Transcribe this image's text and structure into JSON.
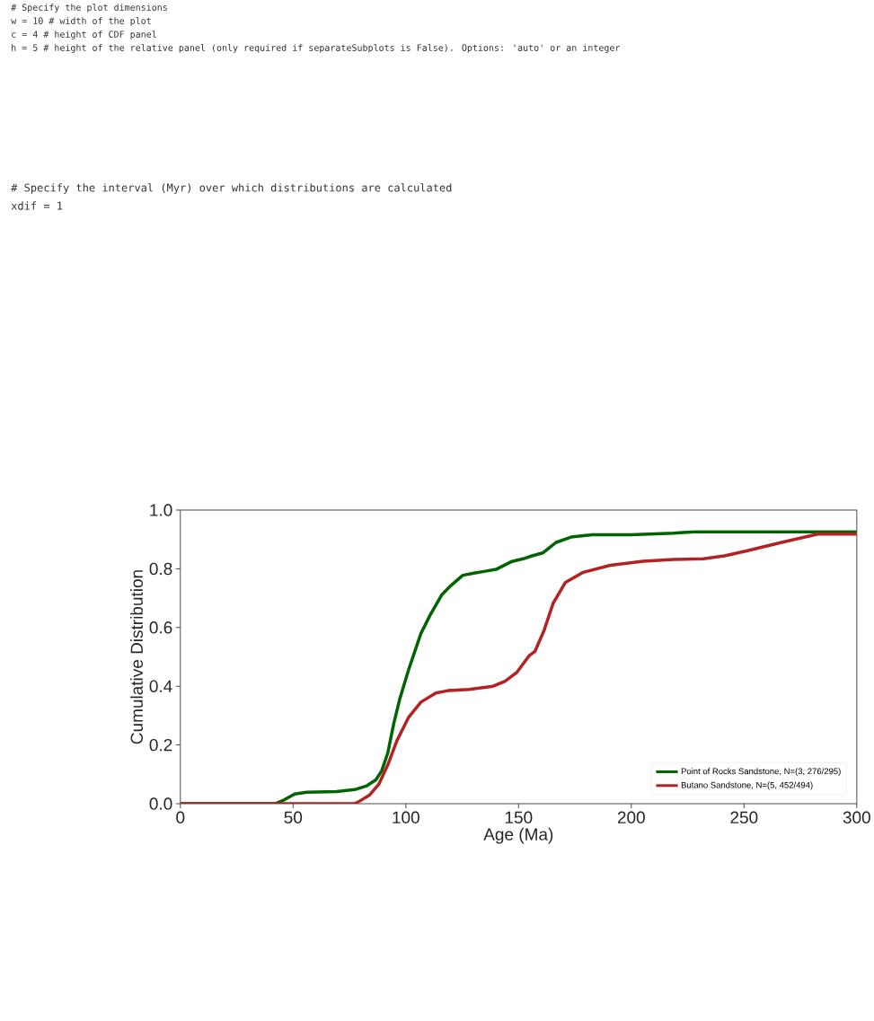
{
  "chart_data": {
    "type": "line",
    "xlabel": "Age (Ma)",
    "ylabel": "Cumulative Distribution",
    "xlim": [
      0,
      300
    ],
    "ylim": [
      0,
      1
    ],
    "xticks": [
      0,
      50,
      100,
      150,
      200,
      250,
      300
    ],
    "yticks": [
      {
        "value": 0,
        "label": "0.0"
      },
      {
        "value": 0.2,
        "label": "0.2"
      },
      {
        "value": 0.4,
        "label": "0.4"
      },
      {
        "value": 0.6,
        "label": "0.6"
      },
      {
        "value": 0.8,
        "label": "0.8"
      },
      {
        "value": 1,
        "label": "1.0"
      }
    ],
    "legend": "bottom right",
    "series": [
      {
        "name": "Point of Rocks Sandstone, N=(3, 276/295)",
        "color": "#006400",
        "x": [
          0,
          42,
          45.3,
          50.7,
          56,
          69.3,
          77.3,
          82.7,
          86.7,
          89.3,
          92,
          94.7,
          97.3,
          101.3,
          106.7,
          110.7,
          116,
          120,
          125.3,
          130.7,
          134.7,
          140,
          146.7,
          152,
          156,
          160.7,
          166.7,
          173.3,
          182.7,
          200,
          218.7,
          228,
          300
        ],
        "values": [
          0,
          0,
          0.01,
          0.033,
          0.039,
          0.041,
          0.048,
          0.061,
          0.081,
          0.112,
          0.173,
          0.275,
          0.356,
          0.458,
          0.58,
          0.641,
          0.712,
          0.743,
          0.778,
          0.786,
          0.791,
          0.798,
          0.824,
          0.834,
          0.844,
          0.854,
          0.89,
          0.908,
          0.916,
          0.916,
          0.921,
          0.926,
          0.926
        ]
      },
      {
        "name": "Butano Sandstone, N=(5, 452/494)",
        "color": "#b22222",
        "x": [
          0,
          77,
          78.7,
          84,
          88,
          92,
          96,
          101.3,
          106.7,
          113.3,
          118.7,
          128,
          138.7,
          144,
          149.3,
          154.7,
          157.3,
          161.3,
          165.3,
          170.7,
          178.7,
          190.7,
          205.3,
          218.7,
          232,
          241.3,
          250.7,
          266.7,
          282.7,
          300
        ],
        "values": [
          0,
          0,
          0.005,
          0.03,
          0.066,
          0.132,
          0.214,
          0.295,
          0.346,
          0.377,
          0.385,
          0.389,
          0.4,
          0.417,
          0.448,
          0.504,
          0.519,
          0.59,
          0.682,
          0.753,
          0.788,
          0.812,
          0.826,
          0.832,
          0.834,
          0.844,
          0.86,
          0.89,
          0.918,
          0.918
        ]
      }
    ],
    "annotations": [
      "# Specify the plot dimensions",
      "w = 10 # width of the plot",
      "c = 4 # height of CDF panel",
      "h = 5 # height of the relative panel (only required if separateSubplots is False). Options: 'auto' or an integer",
      "# Specify the interval (Myr) over which distributions are calculated",
      "xdif = 1"
    ]
  }
}
